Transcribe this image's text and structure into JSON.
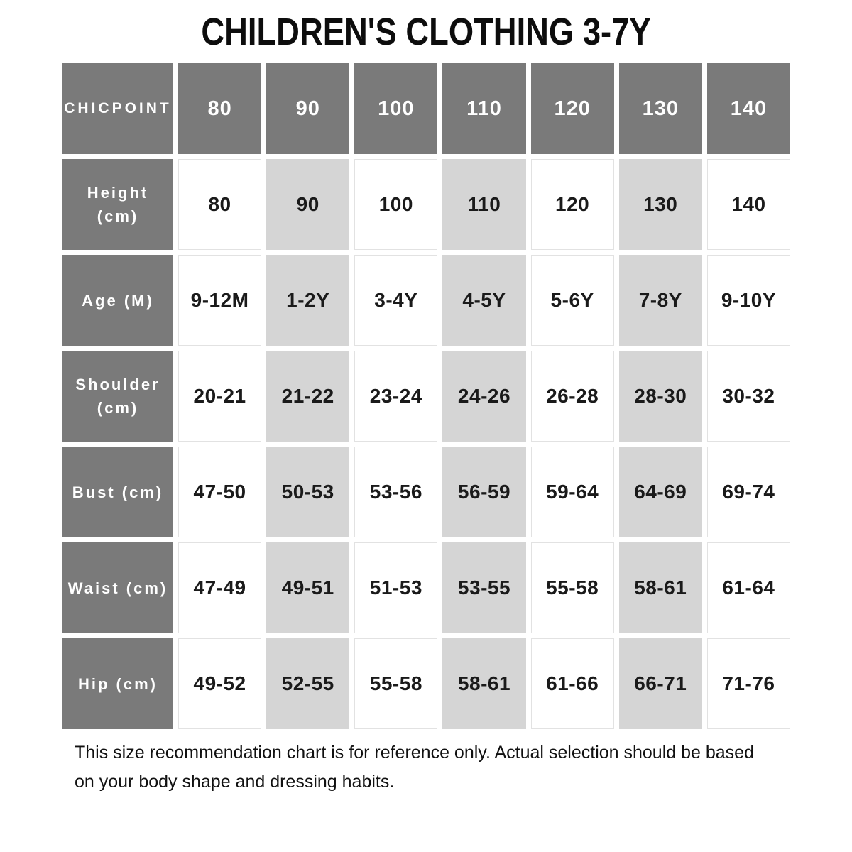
{
  "title": "CHILDREN'S CLOTHING 3-7Y",
  "chart_data": {
    "type": "table",
    "brand": "CHICPOINT",
    "columns": [
      "80",
      "90",
      "100",
      "110",
      "120",
      "130",
      "140"
    ],
    "rows": [
      {
        "label": "Height (cm)",
        "label_display": "Height\n(cm)",
        "values": [
          "80",
          "90",
          "100",
          "110",
          "120",
          "130",
          "140"
        ]
      },
      {
        "label": "Age (M)",
        "label_display": "Age (M)",
        "values": [
          "9-12M",
          "1-2Y",
          "3-4Y",
          "4-5Y",
          "5-6Y",
          "7-8Y",
          "9-10Y"
        ]
      },
      {
        "label": "Shoulder (cm)",
        "label_display": "Shoulder\n(cm)",
        "values": [
          "20-21",
          "21-22",
          "23-24",
          "24-26",
          "26-28",
          "28-30",
          "30-32"
        ]
      },
      {
        "label": "Bust (cm)",
        "label_display": "Bust (cm)",
        "values": [
          "47-50",
          "50-53",
          "53-56",
          "56-59",
          "59-64",
          "64-69",
          "69-74"
        ]
      },
      {
        "label": "Waist (cm)",
        "label_display": "Waist (cm)",
        "values": [
          "47-49",
          "49-51",
          "51-53",
          "53-55",
          "55-58",
          "58-61",
          "61-64"
        ]
      },
      {
        "label": "Hip (cm)",
        "label_display": "Hip (cm)",
        "values": [
          "49-52",
          "52-55",
          "55-58",
          "58-61",
          "61-66",
          "66-71",
          "71-76"
        ]
      }
    ],
    "highlighted_columns": [
      "90",
      "110",
      "130"
    ],
    "legend_position": "none",
    "grid": "cell-gaps"
  },
  "footer_note": "This size recommendation chart is for reference only. Actual selection should be based\non your body shape and dressing habits.",
  "colors": {
    "dark_cell": "#7a7a7a",
    "light_cell": "#d5d5d5",
    "cell_border": "#e2e2e2",
    "value_text": "#1a1a1a",
    "header_text": "#ffffff",
    "background": "#ffffff"
  }
}
